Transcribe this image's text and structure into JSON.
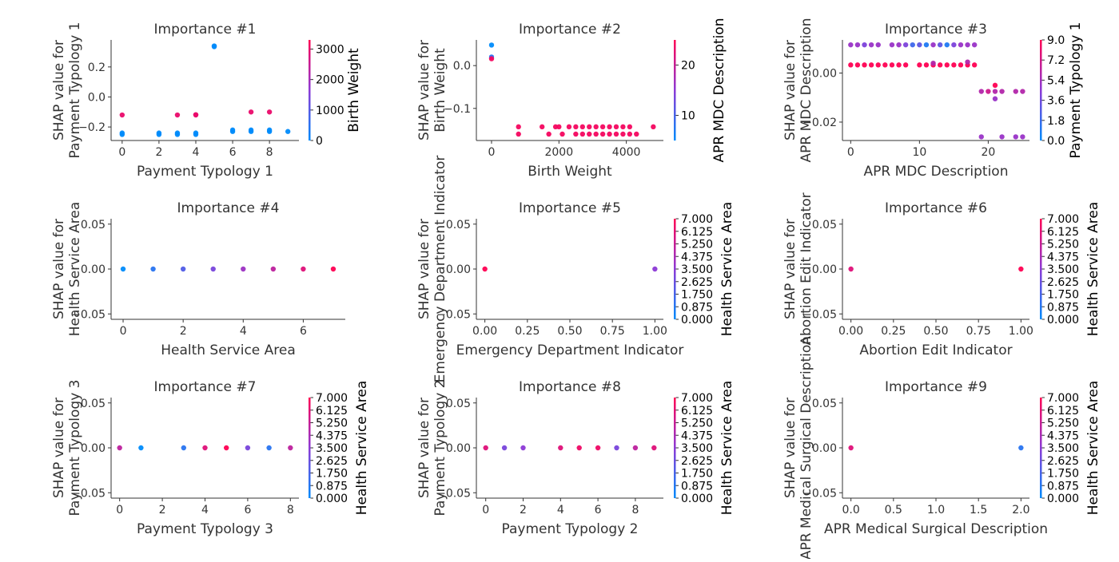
{
  "chart_data": [
    {
      "type": "scatter",
      "title": "Importance #1",
      "xlabel": "Payment Typology 1",
      "ylabel": [
        "SHAP value for",
        "Payment Typology 1"
      ],
      "xlim": [
        -0.6,
        9.6
      ],
      "ylim": [
        -0.29,
        0.38
      ],
      "xticks": [
        0,
        2,
        4,
        6,
        8
      ],
      "yticks": [
        -0.2,
        0.0,
        0.2
      ],
      "ytick_labels": [
        "−0.2",
        "0.0",
        "0.2"
      ],
      "color_feature": "Birth Weight",
      "colorbar_ticks": [
        "0",
        "1000",
        "2000",
        "3000"
      ],
      "colorbar_range": [
        0,
        3300
      ],
      "points": [
        {
          "x": 0,
          "y": -0.12,
          "c": 3000
        },
        {
          "x": 0,
          "y": -0.24,
          "c": 0
        },
        {
          "x": 0,
          "y": -0.25,
          "c": 0
        },
        {
          "x": 2,
          "y": -0.24,
          "c": 0
        },
        {
          "x": 2,
          "y": -0.25,
          "c": 0
        },
        {
          "x": 3,
          "y": -0.12,
          "c": 3000
        },
        {
          "x": 3,
          "y": -0.24,
          "c": 0
        },
        {
          "x": 3,
          "y": -0.25,
          "c": 0
        },
        {
          "x": 4,
          "y": -0.12,
          "c": 3000
        },
        {
          "x": 4,
          "y": -0.118,
          "c": 3000
        },
        {
          "x": 4,
          "y": -0.24,
          "c": 0
        },
        {
          "x": 4,
          "y": -0.25,
          "c": 0
        },
        {
          "x": 5,
          "y": 0.34,
          "c": 0
        },
        {
          "x": 5,
          "y": 0.335,
          "c": 0
        },
        {
          "x": 6,
          "y": -0.22,
          "c": 0
        },
        {
          "x": 6,
          "y": -0.23,
          "c": 0
        },
        {
          "x": 7,
          "y": -0.1,
          "c": 3000
        },
        {
          "x": 7,
          "y": -0.22,
          "c": 0
        },
        {
          "x": 7,
          "y": -0.23,
          "c": 0
        },
        {
          "x": 8,
          "y": -0.1,
          "c": 3000
        },
        {
          "x": 8,
          "y": -0.22,
          "c": 0
        },
        {
          "x": 8,
          "y": -0.23,
          "c": 0
        },
        {
          "x": 9,
          "y": -0.23,
          "c": 0
        }
      ]
    },
    {
      "type": "scatter",
      "title": "Importance #2",
      "xlabel": "Birth Weight",
      "ylabel": [
        "SHAP value for",
        "Birth Weight"
      ],
      "xlim": [
        -450,
        5100
      ],
      "ylim": [
        -0.175,
        0.06
      ],
      "xticks": [
        0,
        2000,
        4000
      ],
      "yticks": [
        -0.1,
        0.0
      ],
      "ytick_labels": [
        "−0.1",
        "0.0"
      ],
      "color_feature": "APR MDC Description",
      "colorbar_ticks": [
        "10",
        "20"
      ],
      "colorbar_range": [
        5,
        25
      ],
      "points": [
        {
          "x": 0,
          "y": 0.048,
          "c": 5
        },
        {
          "x": 0,
          "y": 0.02,
          "c": 8
        },
        {
          "x": 0,
          "y": 0.016,
          "c": 24
        },
        {
          "x": 800,
          "y": -0.143,
          "c": 24
        },
        {
          "x": 800,
          "y": -0.16,
          "c": 24
        },
        {
          "x": 1500,
          "y": -0.143,
          "c": 24
        },
        {
          "x": 1700,
          "y": -0.16,
          "c": 24
        },
        {
          "x": 1900,
          "y": -0.143,
          "c": 24
        },
        {
          "x": 2000,
          "y": -0.143,
          "c": 24
        },
        {
          "x": 2100,
          "y": -0.16,
          "c": 24
        },
        {
          "x": 2300,
          "y": -0.143,
          "c": 24
        },
        {
          "x": 2500,
          "y": -0.143,
          "c": 24
        },
        {
          "x": 2500,
          "y": -0.16,
          "c": 24
        },
        {
          "x": 2700,
          "y": -0.143,
          "c": 24
        },
        {
          "x": 2700,
          "y": -0.16,
          "c": 24
        },
        {
          "x": 2900,
          "y": -0.143,
          "c": 24
        },
        {
          "x": 2900,
          "y": -0.16,
          "c": 24
        },
        {
          "x": 3100,
          "y": -0.143,
          "c": 24
        },
        {
          "x": 3100,
          "y": -0.16,
          "c": 24
        },
        {
          "x": 3300,
          "y": -0.143,
          "c": 24
        },
        {
          "x": 3300,
          "y": -0.16,
          "c": 24
        },
        {
          "x": 3500,
          "y": -0.143,
          "c": 24
        },
        {
          "x": 3500,
          "y": -0.16,
          "c": 24
        },
        {
          "x": 3700,
          "y": -0.143,
          "c": 24
        },
        {
          "x": 3700,
          "y": -0.16,
          "c": 24
        },
        {
          "x": 3900,
          "y": -0.143,
          "c": 24
        },
        {
          "x": 3900,
          "y": -0.16,
          "c": 24
        },
        {
          "x": 4100,
          "y": -0.143,
          "c": 24
        },
        {
          "x": 4100,
          "y": -0.16,
          "c": 24
        },
        {
          "x": 4300,
          "y": -0.16,
          "c": 24
        },
        {
          "x": 4800,
          "y": -0.143,
          "c": 24
        }
      ]
    },
    {
      "type": "scatter",
      "title": "Importance #3",
      "xlabel": "APR MDC Description",
      "ylabel": [
        "SHAP value for",
        "APR MDC Description"
      ],
      "xlim": [
        -1.2,
        26
      ],
      "ylim": [
        -0.0275,
        0.0135
      ],
      "xticks": [
        0,
        10,
        20
      ],
      "yticks": [
        -0.02,
        0.0
      ],
      "ytick_labels": [
        "−0.02",
        "0.00"
      ],
      "color_feature": "Payment Typology 1",
      "colorbar_ticks": [
        "0.0",
        "1.8",
        "3.6",
        "5.4",
        "7.2",
        "9.0"
      ],
      "colorbar_range": [
        0,
        9
      ],
      "points": [
        {
          "x": 0,
          "y": 0.0115,
          "c": 5
        },
        {
          "x": 1,
          "y": 0.0115,
          "c": 5
        },
        {
          "x": 2,
          "y": 0.0115,
          "c": 4
        },
        {
          "x": 3,
          "y": 0.0115,
          "c": 5
        },
        {
          "x": 4,
          "y": 0.0115,
          "c": 5
        },
        {
          "x": 6,
          "y": 0.0115,
          "c": 5
        },
        {
          "x": 7,
          "y": 0.0115,
          "c": 5
        },
        {
          "x": 8,
          "y": 0.0115,
          "c": 4
        },
        {
          "x": 9,
          "y": 0.0115,
          "c": 2
        },
        {
          "x": 10,
          "y": 0.0115,
          "c": 3
        },
        {
          "x": 11,
          "y": 0.0115,
          "c": 1
        },
        {
          "x": 12,
          "y": 0.0115,
          "c": 5
        },
        {
          "x": 13,
          "y": 0.0115,
          "c": 3
        },
        {
          "x": 14,
          "y": 0.0115,
          "c": 1
        },
        {
          "x": 15,
          "y": 0.0115,
          "c": 4
        },
        {
          "x": 16,
          "y": 0.0115,
          "c": 5
        },
        {
          "x": 17,
          "y": 0.0115,
          "c": 5
        },
        {
          "x": 18,
          "y": 0.0115,
          "c": 5
        },
        {
          "x": 0,
          "y": 0.0033,
          "c": 9
        },
        {
          "x": 1,
          "y": 0.0033,
          "c": 9
        },
        {
          "x": 2,
          "y": 0.0033,
          "c": 9
        },
        {
          "x": 3,
          "y": 0.0033,
          "c": 9
        },
        {
          "x": 4,
          "y": 0.0033,
          "c": 9
        },
        {
          "x": 5,
          "y": 0.0033,
          "c": 9
        },
        {
          "x": 6,
          "y": 0.0033,
          "c": 9
        },
        {
          "x": 7,
          "y": 0.0033,
          "c": 9
        },
        {
          "x": 8,
          "y": 0.0033,
          "c": 9
        },
        {
          "x": 10,
          "y": 0.0033,
          "c": 9
        },
        {
          "x": 11,
          "y": 0.0033,
          "c": 9
        },
        {
          "x": 12,
          "y": 0.0033,
          "c": 9
        },
        {
          "x": 12,
          "y": 0.004,
          "c": 6
        },
        {
          "x": 13,
          "y": 0.0033,
          "c": 9
        },
        {
          "x": 14,
          "y": 0.0033,
          "c": 9
        },
        {
          "x": 15,
          "y": 0.0033,
          "c": 9
        },
        {
          "x": 16,
          "y": 0.0033,
          "c": 9
        },
        {
          "x": 17,
          "y": 0.0033,
          "c": 9
        },
        {
          "x": 17,
          "y": 0.0045,
          "c": 6
        },
        {
          "x": 18,
          "y": 0.0033,
          "c": 9
        },
        {
          "x": 19,
          "y": -0.0075,
          "c": 6
        },
        {
          "x": 20,
          "y": -0.0075,
          "c": 7
        },
        {
          "x": 21,
          "y": -0.005,
          "c": 9
        },
        {
          "x": 21,
          "y": -0.0075,
          "c": 6
        },
        {
          "x": 21,
          "y": -0.0105,
          "c": 5
        },
        {
          "x": 22,
          "y": -0.0075,
          "c": 6
        },
        {
          "x": 24,
          "y": -0.0075,
          "c": 6
        },
        {
          "x": 25,
          "y": -0.0075,
          "c": 6
        },
        {
          "x": 19,
          "y": -0.026,
          "c": 5
        },
        {
          "x": 22,
          "y": -0.026,
          "c": 5
        },
        {
          "x": 24,
          "y": -0.026,
          "c": 5
        },
        {
          "x": 25,
          "y": -0.026,
          "c": 5
        }
      ]
    },
    {
      "type": "scatter",
      "title": "Importance #4",
      "xlabel": "Health Service Area",
      "ylabel": [
        "SHAP value for",
        "Health Service Area"
      ],
      "xlim": [
        -0.4,
        7.4
      ],
      "ylim": [
        -0.056,
        0.056
      ],
      "xticks": [
        0,
        2,
        4,
        6
      ],
      "yticks": [
        -0.05,
        0.0,
        0.05
      ],
      "ytick_labels": [
        "−0.05",
        "0.00",
        "0.05"
      ],
      "color_feature": "",
      "colorbar_ticks": [],
      "colorbar_range": [
        0,
        7
      ],
      "points": [
        {
          "x": 0,
          "y": 0,
          "c": 0
        },
        {
          "x": 1,
          "y": 0,
          "c": 1
        },
        {
          "x": 2,
          "y": 0,
          "c": 2
        },
        {
          "x": 3,
          "y": 0,
          "c": 3
        },
        {
          "x": 4,
          "y": 0,
          "c": 4
        },
        {
          "x": 5,
          "y": 0,
          "c": 5
        },
        {
          "x": 6,
          "y": 0,
          "c": 6
        },
        {
          "x": 7,
          "y": 0,
          "c": 7
        }
      ]
    },
    {
      "type": "scatter",
      "title": "Importance #5",
      "xlabel": "Emergency Department Indicator",
      "ylabel": [
        "SHAP value for",
        "Emergency Department Indicator"
      ],
      "xlim": [
        -0.05,
        1.05
      ],
      "ylim": [
        -0.056,
        0.056
      ],
      "xticks": [
        0.0,
        0.25,
        0.5,
        0.75,
        1.0
      ],
      "xtick_labels": [
        "0.00",
        "0.25",
        "0.50",
        "0.75",
        "1.00"
      ],
      "yticks": [
        -0.05,
        0.0,
        0.05
      ],
      "ytick_labels": [
        "−0.05",
        "0.00",
        "0.05"
      ],
      "color_feature": "Health Service Area",
      "colorbar_ticks": [
        "0.000",
        "0.875",
        "1.750",
        "2.625",
        "3.500",
        "4.375",
        "5.250",
        "6.125",
        "7.000"
      ],
      "colorbar_range": [
        0,
        7
      ],
      "points": [
        {
          "x": 0,
          "y": 0,
          "c": 7
        },
        {
          "x": 1,
          "y": 0,
          "c": 3.5
        }
      ]
    },
    {
      "type": "scatter",
      "title": "Importance #6",
      "xlabel": "Abortion Edit Indicator",
      "ylabel": [
        "SHAP value for",
        "Abortion Edit Indicator"
      ],
      "xlim": [
        -0.05,
        1.05
      ],
      "ylim": [
        -0.056,
        0.056
      ],
      "xticks": [
        0.0,
        0.25,
        0.5,
        0.75,
        1.0
      ],
      "xtick_labels": [
        "0.00",
        "0.25",
        "0.50",
        "0.75",
        "1.00"
      ],
      "yticks": [
        -0.05,
        0.0,
        0.05
      ],
      "ytick_labels": [
        "−0.05",
        "0.00",
        "0.05"
      ],
      "color_feature": "Health Service Area",
      "colorbar_ticks": [
        "0.000",
        "0.875",
        "1.750",
        "2.625",
        "3.500",
        "4.375",
        "5.250",
        "6.125",
        "7.000"
      ],
      "colorbar_range": [
        0,
        7
      ],
      "points": [
        {
          "x": 0,
          "y": 0,
          "c": 6
        },
        {
          "x": 1,
          "y": 0,
          "c": 7
        }
      ]
    },
    {
      "type": "scatter",
      "title": "Importance #7",
      "xlabel": "Payment Typology 3",
      "ylabel": [
        "SHAP value for",
        "Payment Typology 3"
      ],
      "xlim": [
        -0.4,
        8.4
      ],
      "ylim": [
        -0.056,
        0.056
      ],
      "xticks": [
        0,
        2,
        4,
        6,
        8
      ],
      "yticks": [
        -0.05,
        0.0,
        0.05
      ],
      "ytick_labels": [
        "−0.05",
        "0.00",
        "0.05"
      ],
      "color_feature": "Health Service Area",
      "colorbar_ticks": [
        "0.000",
        "0.875",
        "1.750",
        "2.625",
        "3.500",
        "4.375",
        "5.250",
        "6.125",
        "7.000"
      ],
      "colorbar_range": [
        0,
        7
      ],
      "points": [
        {
          "x": 0,
          "y": 0,
          "c": 5
        },
        {
          "x": 1,
          "y": 0,
          "c": 0
        },
        {
          "x": 3,
          "y": 0,
          "c": 1
        },
        {
          "x": 4,
          "y": 0,
          "c": 6
        },
        {
          "x": 5,
          "y": 0,
          "c": 7
        },
        {
          "x": 6,
          "y": 0,
          "c": 3
        },
        {
          "x": 7,
          "y": 0,
          "c": 1
        },
        {
          "x": 8,
          "y": 0,
          "c": 5
        }
      ]
    },
    {
      "type": "scatter",
      "title": "Importance #8",
      "xlabel": "Payment Typology 2",
      "ylabel": [
        "SHAP value for",
        "Payment Typology 2"
      ],
      "xlim": [
        -0.5,
        9.5
      ],
      "ylim": [
        -0.056,
        0.056
      ],
      "xticks": [
        0,
        2,
        4,
        6,
        8
      ],
      "yticks": [
        -0.05,
        0.0,
        0.05
      ],
      "ytick_labels": [
        "−0.05",
        "0.00",
        "0.05"
      ],
      "color_feature": "Health Service Area",
      "colorbar_ticks": [
        "0.000",
        "0.875",
        "1.750",
        "2.625",
        "3.500",
        "4.375",
        "5.250",
        "6.125",
        "7.000"
      ],
      "colorbar_range": [
        0,
        7
      ],
      "points": [
        {
          "x": 0,
          "y": 0,
          "c": 6
        },
        {
          "x": 1,
          "y": 0,
          "c": 3
        },
        {
          "x": 2,
          "y": 0,
          "c": 3.5
        },
        {
          "x": 4,
          "y": 0,
          "c": 6
        },
        {
          "x": 5,
          "y": 0,
          "c": 6.5
        },
        {
          "x": 6,
          "y": 0,
          "c": 6.5
        },
        {
          "x": 7,
          "y": 0,
          "c": 3
        },
        {
          "x": 8,
          "y": 0,
          "c": 5
        },
        {
          "x": 9,
          "y": 0,
          "c": 6
        }
      ]
    },
    {
      "type": "scatter",
      "title": "Importance #9",
      "xlabel": "APR Medical Surgical Description",
      "ylabel": [
        "SHAP value for",
        "APR Medical Surgical Description"
      ],
      "xlim": [
        -0.1,
        2.1
      ],
      "ylim": [
        -0.056,
        0.056
      ],
      "xticks": [
        0.0,
        0.5,
        1.0,
        1.5,
        2.0
      ],
      "xtick_labels": [
        "0.0",
        "0.5",
        "1.0",
        "1.5",
        "2.0"
      ],
      "yticks": [
        -0.05,
        0.0,
        0.05
      ],
      "ytick_labels": [
        "−0.05",
        "0.00",
        "0.05"
      ],
      "color_feature": "Health Service Area",
      "colorbar_ticks": [
        "0.000",
        "0.875",
        "1.750",
        "2.625",
        "3.500",
        "4.375",
        "5.250",
        "6.125",
        "7.000"
      ],
      "colorbar_range": [
        0,
        7
      ],
      "points": [
        {
          "x": 0,
          "y": 0,
          "c": 6
        },
        {
          "x": 2,
          "y": 0,
          "c": 1
        }
      ]
    }
  ]
}
